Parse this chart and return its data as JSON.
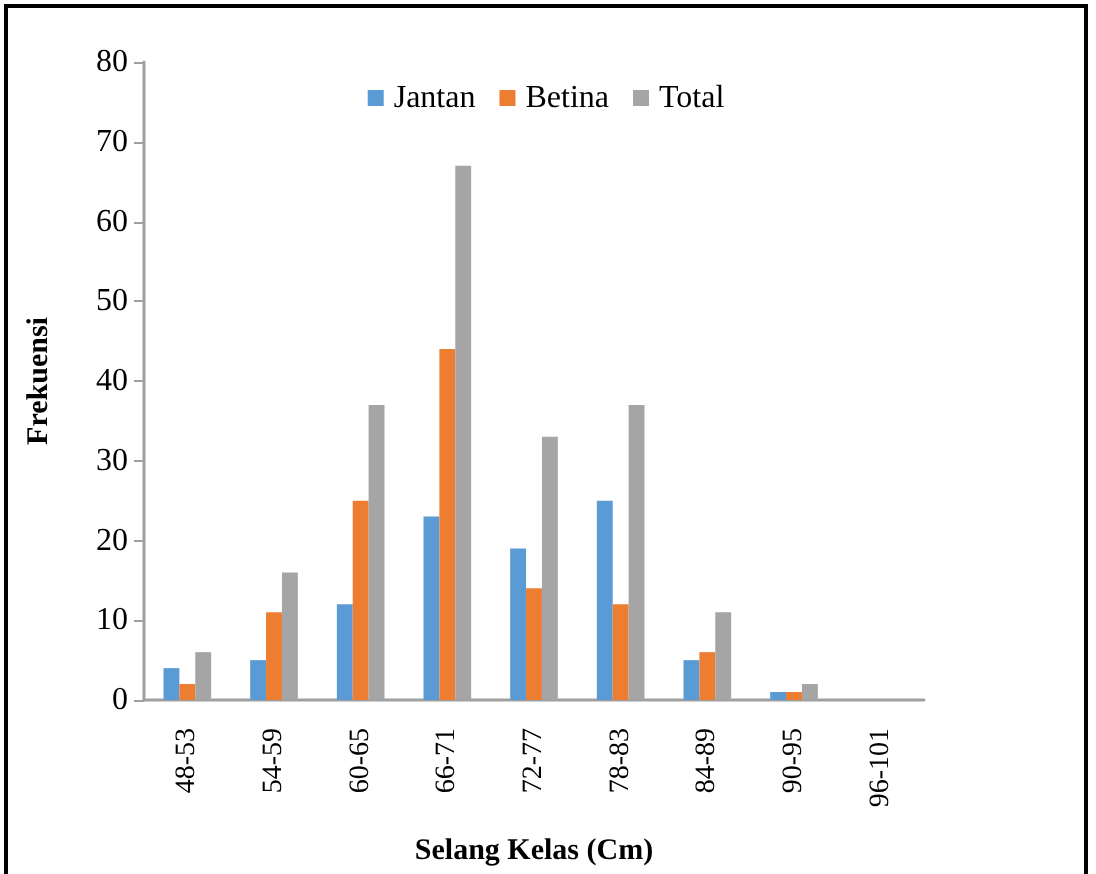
{
  "chart_data": {
    "type": "bar",
    "xlabel": "Selang Kelas (Cm)",
    "ylabel": "Frekuensi",
    "categories": [
      "48-53",
      "54-59",
      "60-65",
      "66-71",
      "72-77",
      "78-83",
      "84-89",
      "90-95",
      "96-101"
    ],
    "series": [
      {
        "name": "Jantan",
        "color": "#5b9bd5",
        "values": [
          4,
          5,
          12,
          23,
          19,
          25,
          5,
          1,
          0
        ]
      },
      {
        "name": "Betina",
        "color": "#ed7d31",
        "values": [
          2,
          11,
          25,
          44,
          14,
          12,
          6,
          1,
          0
        ]
      },
      {
        "name": "Total",
        "color": "#a5a5a5",
        "values": [
          6,
          16,
          37,
          67,
          33,
          37,
          11,
          2,
          0
        ]
      }
    ],
    "ylim": [
      0,
      80
    ],
    "yticks": [
      0,
      10,
      20,
      30,
      40,
      50,
      60,
      70,
      80
    ],
    "grid": false,
    "legend": "top"
  }
}
